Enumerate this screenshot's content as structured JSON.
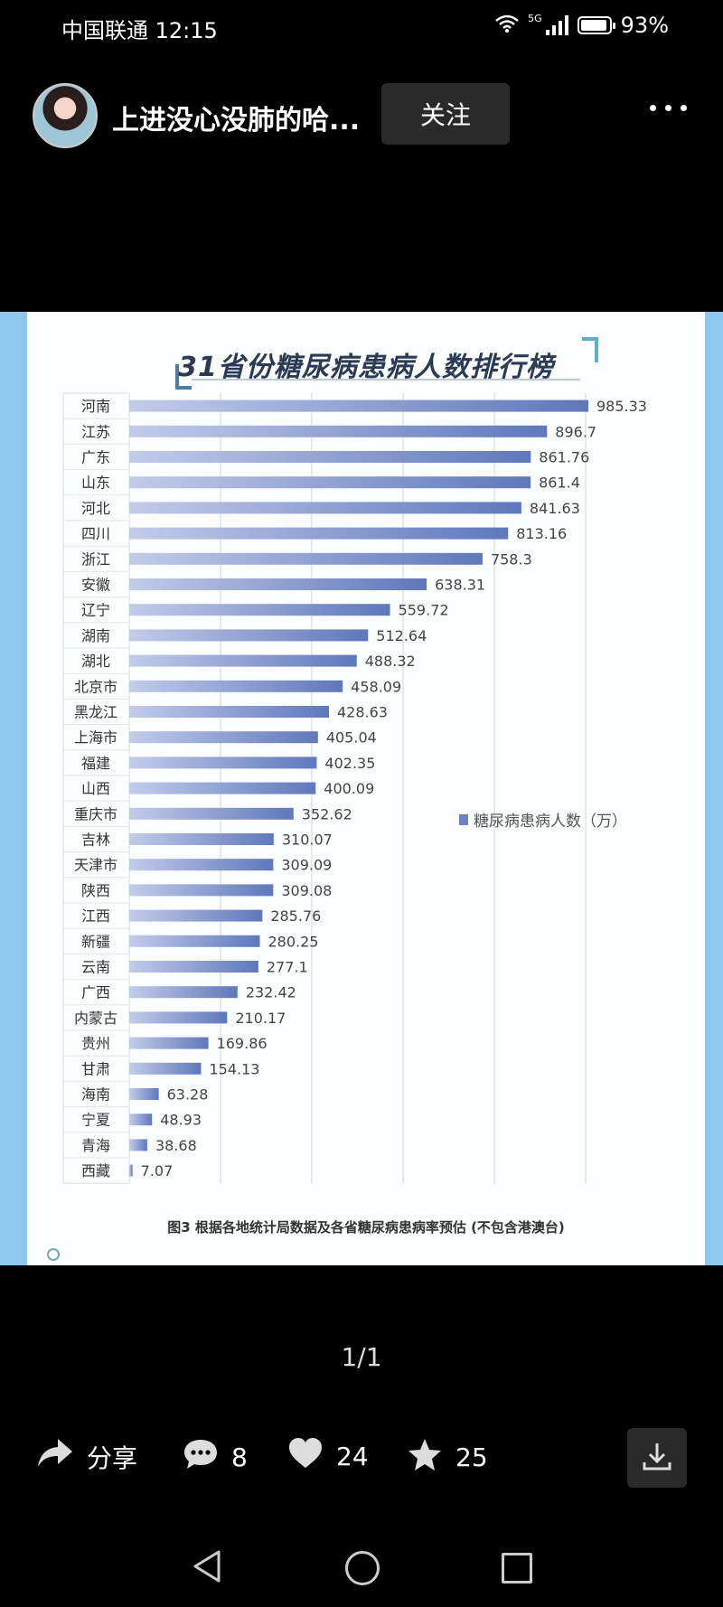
{
  "status_bar": {
    "carrier_time": "中国联通 12:15",
    "network": "5G",
    "battery": "93%",
    "battery_level": 0.93
  },
  "header": {
    "user_name": "上进没心没肺的哈...",
    "follow_label": "关注"
  },
  "post_image": {
    "title": "31省份糖尿病患病人数排行榜",
    "legend_label": "糖尿病患病人数（万）",
    "caption": "图3  根据各地统计局数据及各省糖尿病患病率预估 (不包含港澳台)"
  },
  "chart_data": {
    "type": "bar",
    "orientation": "horizontal",
    "title": "31省份糖尿病患病人数排行榜",
    "categories": [
      "河南",
      "江苏",
      "广东",
      "山东",
      "河北",
      "四川",
      "浙江",
      "安徽",
      "辽宁",
      "湖南",
      "湖北",
      "北京市",
      "黑龙江",
      "上海市",
      "福建",
      "山西",
      "重庆市",
      "吉林",
      "天津市",
      "陕西",
      "江西",
      "新疆",
      "云南",
      "广西",
      "内蒙古",
      "贵州",
      "甘肃",
      "海南",
      "宁夏",
      "青海",
      "西藏"
    ],
    "series": [
      {
        "name": "糖尿病患病人数（万）",
        "values": [
          985.33,
          896.7,
          861.76,
          861.4,
          841.63,
          813.16,
          758.3,
          638.31,
          559.72,
          512.64,
          488.32,
          458.09,
          428.63,
          405.04,
          402.35,
          400.09,
          352.62,
          310.07,
          309.09,
          309.08,
          285.76,
          280.25,
          277.1,
          232.42,
          210.17,
          169.86,
          154.13,
          63.28,
          48.93,
          38.68,
          7.07
        ],
        "labels": [
          "985.33",
          "896.7",
          "861.76",
          "861.4",
          "841.63",
          "813.16",
          "758.3",
          "638.31",
          "559.72",
          "512.64",
          "488.32",
          "458.09",
          "428.63",
          "405.04",
          "402.35",
          "400.09",
          "352.62",
          "310.07",
          "309.09",
          "309.08",
          "285.76",
          "280.25",
          "277.1",
          "232.42",
          "210.17",
          "169.86",
          "154.13",
          "63.28",
          "48.93",
          "38.68",
          "7.07"
        ]
      }
    ],
    "xlim": [
      0,
      1000
    ],
    "grid": true,
    "legend_position": "right",
    "bar_color": "#5f78bb"
  },
  "pager": {
    "text": "1/1"
  },
  "actions": {
    "share_label": "分享",
    "comments": "8",
    "likes": "24",
    "favorites": "25"
  }
}
